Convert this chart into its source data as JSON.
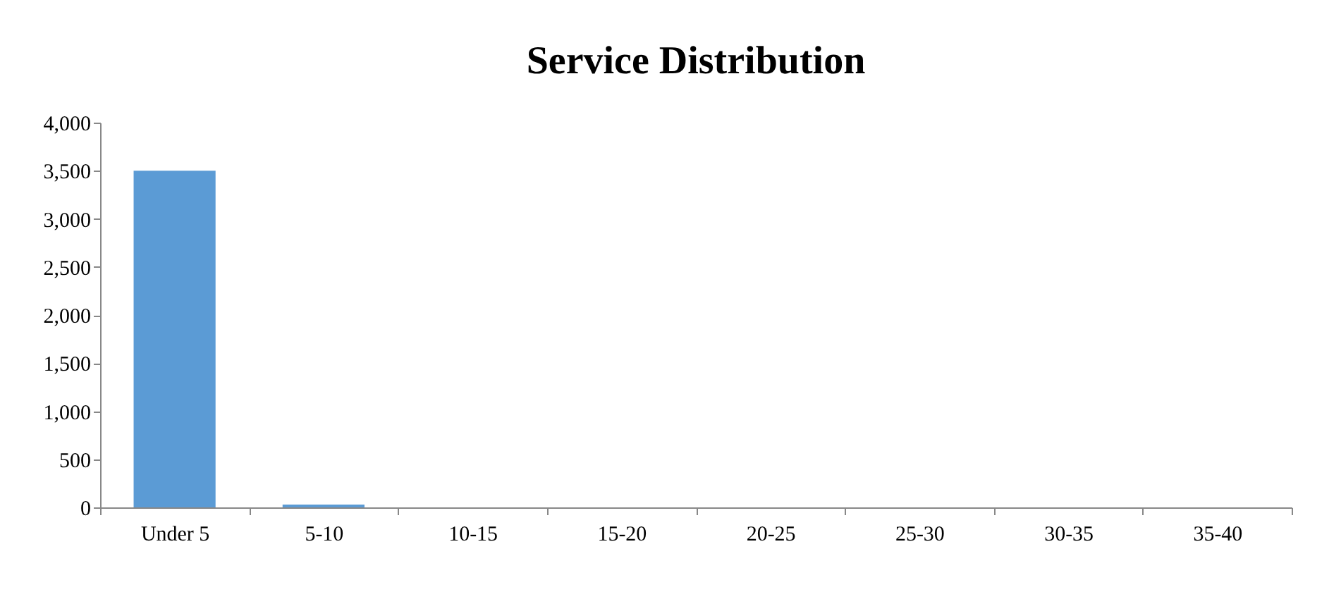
{
  "chart_data": {
    "type": "bar",
    "title": "Service Distribution",
    "categories": [
      "Under 5",
      "5-10",
      "10-15",
      "15-20",
      "20-25",
      "25-30",
      "30-35",
      "35-40"
    ],
    "values": [
      3500,
      30,
      0,
      0,
      0,
      0,
      0,
      0
    ],
    "color": "#5b9bd5",
    "ylim": [
      0,
      4000
    ],
    "yticks": [
      0,
      500,
      {
        "value": 1000,
        "label": "1,000"
      },
      {
        "value": 1500,
        "label": "1,500"
      },
      {
        "value": 2000,
        "label": "2,000"
      },
      {
        "value": 2500,
        "label": "2,500"
      },
      {
        "value": 3000,
        "label": "3,000"
      },
      {
        "value": 3500,
        "label": "3,500"
      },
      {
        "value": 4000,
        "label": "4,000"
      }
    ],
    "grid": false
  }
}
